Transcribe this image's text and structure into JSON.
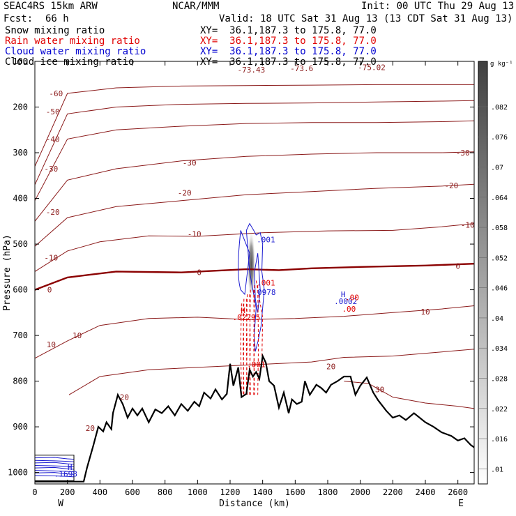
{
  "header": {
    "model": "SEAC4RS 15km ARW",
    "org": "NCAR/MMM",
    "init": "Init: 00 UTC Thu 29 Aug 13",
    "fcst_label": "Fcst:",
    "fcst_value": "66 h",
    "valid": "Valid: 18 UTC Sat 31 Aug 13 (13 CDT Sat 31 Aug 13)",
    "fields": [
      {
        "name": "Snow mixing ratio",
        "xy": "XY=  36.1,187.3 to 175.8, 77.0",
        "color": "#000000"
      },
      {
        "name": "Rain water mixing ratio",
        "xy": "XY=  36.1,187.3 to 175.8, 77.0",
        "color": "#e00000"
      },
      {
        "name": "Cloud water mixing ratio",
        "xy": "XY=  36.1,187.3 to 175.8, 77.0",
        "color": "#0000d0"
      },
      {
        "name": "Cloud ice mixing ratio",
        "xy": "XY=  36.1,187.3 to 175.8, 77.0",
        "color": "#000000"
      }
    ]
  },
  "chart_data": {
    "type": "cross-section",
    "xlabel": "Distance (km)",
    "ylabel": "Pressure (hPa)",
    "xlim": [
      0,
      2700
    ],
    "ylim": [
      1025,
      100
    ],
    "x_ticks": [
      0,
      200,
      400,
      600,
      800,
      1000,
      1200,
      1400,
      1600,
      1800,
      2000,
      2200,
      2400,
      2600
    ],
    "y_ticks": [
      100,
      200,
      300,
      400,
      500,
      600,
      700,
      800,
      900,
      1000
    ],
    "x_end_labels": {
      "left": "W",
      "right": "E"
    },
    "colorbar": {
      "unit": "g kg⁻¹",
      "ticks": [
        ".01",
        ".016",
        ".022",
        ".028",
        ".034",
        ".04",
        ".046",
        ".052",
        ".058",
        ".064",
        ".07",
        ".076",
        ".082"
      ]
    },
    "temperature_isotherms": [
      {
        "label": "0",
        "highlight": true,
        "points": [
          [
            0,
            600
          ],
          [
            200,
            573
          ],
          [
            500,
            560
          ],
          [
            900,
            562
          ],
          [
            1300,
            555
          ],
          [
            1500,
            557
          ],
          [
            1700,
            553
          ],
          [
            2000,
            550
          ],
          [
            2400,
            547
          ],
          [
            2700,
            543
          ]
        ]
      },
      {
        "label": "-10",
        "points": [
          [
            0,
            560
          ],
          [
            200,
            515
          ],
          [
            400,
            495
          ],
          [
            700,
            482
          ],
          [
            1000,
            483
          ],
          [
            1400,
            475
          ],
          [
            1800,
            471
          ],
          [
            2200,
            470
          ],
          [
            2500,
            462
          ],
          [
            2700,
            455
          ]
        ]
      },
      {
        "label": "-20",
        "points": [
          [
            0,
            505
          ],
          [
            200,
            442
          ],
          [
            500,
            418
          ],
          [
            900,
            405
          ],
          [
            1300,
            392
          ],
          [
            1700,
            385
          ],
          [
            2100,
            378
          ],
          [
            2500,
            373
          ],
          [
            2700,
            369
          ]
        ]
      },
      {
        "label": "-30",
        "points": [
          [
            0,
            450
          ],
          [
            200,
            360
          ],
          [
            500,
            335
          ],
          [
            900,
            318
          ],
          [
            1300,
            308
          ],
          [
            1700,
            303
          ],
          [
            2100,
            300
          ],
          [
            2500,
            300
          ],
          [
            2700,
            298
          ]
        ]
      },
      {
        "label": "-40",
        "points": [
          [
            0,
            405
          ],
          [
            200,
            270
          ],
          [
            500,
            250
          ],
          [
            900,
            242
          ],
          [
            1300,
            236
          ],
          [
            1700,
            234
          ],
          [
            2100,
            234
          ],
          [
            2500,
            232
          ],
          [
            2700,
            230
          ]
        ]
      },
      {
        "label": "-50",
        "points": [
          [
            0,
            370
          ],
          [
            200,
            215
          ],
          [
            500,
            200
          ],
          [
            900,
            194
          ],
          [
            1300,
            192
          ],
          [
            1700,
            191
          ],
          [
            2100,
            189
          ],
          [
            2500,
            187
          ],
          [
            2700,
            186
          ]
        ]
      },
      {
        "label": "-60",
        "points": [
          [
            0,
            330
          ],
          [
            200,
            170
          ],
          [
            500,
            158
          ],
          [
            900,
            154
          ],
          [
            1300,
            153
          ],
          [
            1700,
            152
          ],
          [
            2100,
            151
          ],
          [
            2500,
            151
          ],
          [
            2700,
            151
          ]
        ]
      },
      {
        "label": "10",
        "points": [
          [
            0,
            750
          ],
          [
            200,
            712
          ],
          [
            400,
            678
          ],
          [
            700,
            663
          ],
          [
            1000,
            660
          ],
          [
            1300,
            665
          ],
          [
            1600,
            663
          ],
          [
            1900,
            658
          ],
          [
            2200,
            650
          ],
          [
            2500,
            642
          ],
          [
            2700,
            635
          ]
        ]
      },
      {
        "label": "20",
        "points": [
          [
            210,
            830
          ],
          [
            400,
            790
          ],
          [
            700,
            775
          ],
          [
            1000,
            770
          ],
          [
            1400,
            763
          ],
          [
            1700,
            758
          ],
          [
            1900,
            748
          ],
          [
            2200,
            745
          ],
          [
            2500,
            736
          ],
          [
            2700,
            730
          ]
        ]
      },
      {
        "label": "30",
        "points": [
          [
            1900,
            800
          ],
          [
            2050,
            805
          ],
          [
            2200,
            835
          ],
          [
            2400,
            848
          ],
          [
            2600,
            855
          ],
          [
            2700,
            860
          ]
        ]
      }
    ],
    "isotherm_labels": [
      {
        "text": "-60",
        "x": 130,
        "p": 170
      },
      {
        "text": "-50",
        "x": 110,
        "p": 210
      },
      {
        "text": "-40",
        "x": 110,
        "p": 270
      },
      {
        "text": "-30",
        "x": 100,
        "p": 335
      },
      {
        "text": "-30",
        "x": 950,
        "p": 322
      },
      {
        "text": "-30",
        "x": 2630,
        "p": 300
      },
      {
        "text": "-20",
        "x": 110,
        "p": 430
      },
      {
        "text": "-20",
        "x": 920,
        "p": 388
      },
      {
        "text": "-20",
        "x": 2560,
        "p": 372
      },
      {
        "text": "-10",
        "x": 100,
        "p": 530
      },
      {
        "text": "-10",
        "x": 980,
        "p": 478
      },
      {
        "text": "-10",
        "x": 2660,
        "p": 458
      },
      {
        "text": "0",
        "x": 90,
        "p": 600
      },
      {
        "text": "0",
        "x": 1010,
        "p": 562
      },
      {
        "text": "0",
        "x": 2600,
        "p": 548
      },
      {
        "text": "10",
        "x": 100,
        "p": 720
      },
      {
        "text": "10",
        "x": 260,
        "p": 700
      },
      {
        "text": "10",
        "x": 2400,
        "p": 648
      },
      {
        "text": "20",
        "x": 550,
        "p": 835
      },
      {
        "text": "20",
        "x": 340,
        "p": 903
      },
      {
        "text": "20",
        "x": 1820,
        "p": 768
      },
      {
        "text": "30",
        "x": 2120,
        "p": 818
      }
    ],
    "tropopause_labels": [
      {
        "text": "-73.43",
        "x": 1330,
        "p": 118
      },
      {
        "text": "-73.6",
        "x": 1640,
        "p": 115
      },
      {
        "text": "-75.02",
        "x": 2070,
        "p": 113
      }
    ],
    "terrain": [
      [
        0,
        1020
      ],
      [
        120,
        1020
      ],
      [
        200,
        1020
      ],
      [
        300,
        1020
      ],
      [
        320,
        990
      ],
      [
        360,
        940
      ],
      [
        390,
        900
      ],
      [
        420,
        910
      ],
      [
        440,
        890
      ],
      [
        470,
        905
      ],
      [
        480,
        870
      ],
      [
        510,
        830
      ],
      [
        540,
        850
      ],
      [
        570,
        880
      ],
      [
        600,
        860
      ],
      [
        630,
        875
      ],
      [
        660,
        860
      ],
      [
        700,
        890
      ],
      [
        740,
        862
      ],
      [
        780,
        870
      ],
      [
        820,
        855
      ],
      [
        860,
        875
      ],
      [
        900,
        850
      ],
      [
        940,
        865
      ],
      [
        980,
        845
      ],
      [
        1010,
        855
      ],
      [
        1040,
        825
      ],
      [
        1080,
        838
      ],
      [
        1110,
        818
      ],
      [
        1150,
        840
      ],
      [
        1180,
        828
      ],
      [
        1200,
        762
      ],
      [
        1220,
        810
      ],
      [
        1250,
        770
      ],
      [
        1270,
        835
      ],
      [
        1300,
        828
      ],
      [
        1320,
        775
      ],
      [
        1340,
        790
      ],
      [
        1360,
        780
      ],
      [
        1380,
        795
      ],
      [
        1400,
        745
      ],
      [
        1420,
        760
      ],
      [
        1440,
        800
      ],
      [
        1470,
        810
      ],
      [
        1500,
        858
      ],
      [
        1530,
        825
      ],
      [
        1560,
        870
      ],
      [
        1580,
        840
      ],
      [
        1610,
        850
      ],
      [
        1640,
        845
      ],
      [
        1660,
        800
      ],
      [
        1690,
        830
      ],
      [
        1730,
        808
      ],
      [
        1760,
        815
      ],
      [
        1790,
        825
      ],
      [
        1820,
        808
      ],
      [
        1860,
        800
      ],
      [
        1900,
        790
      ],
      [
        1940,
        790
      ],
      [
        1970,
        830
      ],
      [
        2000,
        810
      ],
      [
        2040,
        792
      ],
      [
        2080,
        825
      ],
      [
        2110,
        842
      ],
      [
        2160,
        865
      ],
      [
        2200,
        880
      ],
      [
        2240,
        875
      ],
      [
        2280,
        885
      ],
      [
        2330,
        870
      ],
      [
        2400,
        890
      ],
      [
        2450,
        900
      ],
      [
        2500,
        912
      ],
      [
        2560,
        920
      ],
      [
        2600,
        930
      ],
      [
        2640,
        925
      ],
      [
        2680,
        940
      ],
      [
        2700,
        945
      ]
    ],
    "snow_max_shading": {
      "x_center": 1330,
      "x_halfwidth": 25,
      "p_top": 470,
      "p_bottom": 620
    },
    "cloud_water_contour_labels": [
      {
        "text": ".001",
        "x": 1420,
        "p": 490
      },
      {
        "text": ".0978",
        "x": 1410,
        "p": 605
      },
      {
        "text": "H",
        "x": 1895,
        "p": 610
      },
      {
        "text": ".0002",
        "x": 1910,
        "p": 625
      }
    ],
    "rain_contour_labels": [
      {
        "text": ".001",
        "x": 1420,
        "p": 585
      },
      {
        "text": "H",
        "x": 1280,
        "p": 645
      },
      {
        "text": ".02295",
        "x": 1300,
        "p": 660
      },
      {
        "text": ".001",
        "x": 1360,
        "p": 763
      },
      {
        "text": ".00",
        "x": 1950,
        "p": 617
      },
      {
        "text": ".00",
        "x": 1930,
        "p": 642
      }
    ],
    "surface_labels": [
      {
        "text": ".1698",
        "x": 190,
        "p": 1003
      },
      {
        "text": "H",
        "x": 215,
        "p": 988
      }
    ]
  }
}
